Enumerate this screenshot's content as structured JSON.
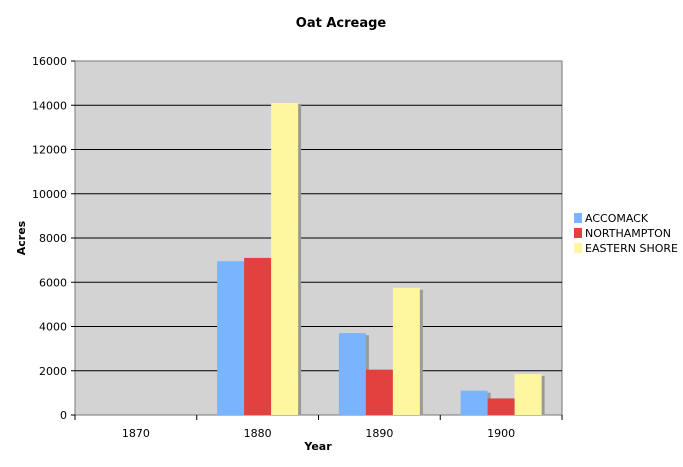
{
  "chart_data": {
    "type": "bar",
    "title": "Oat Acreage",
    "xlabel": "Year",
    "ylabel": "Acres",
    "categories": [
      "1870",
      "1880",
      "1890",
      "1900"
    ],
    "series": [
      {
        "name": "ACCOMACK",
        "color": "#7ab4ff",
        "values": [
          0,
          6950,
          3700,
          1100
        ]
      },
      {
        "name": "NORTHAMPTON",
        "color": "#e34040",
        "values": [
          0,
          7100,
          2050,
          750
        ]
      },
      {
        "name": "EASTERN SHORE",
        "color": "#fff7a0",
        "values": [
          0,
          14100,
          5750,
          1850
        ]
      }
    ],
    "yticks": [
      "0",
      "2000",
      "4000",
      "6000",
      "8000",
      "10000",
      "12000",
      "14000",
      "16000"
    ],
    "ylim": [
      0,
      16000
    ],
    "grid": true,
    "legend_position": "right"
  }
}
